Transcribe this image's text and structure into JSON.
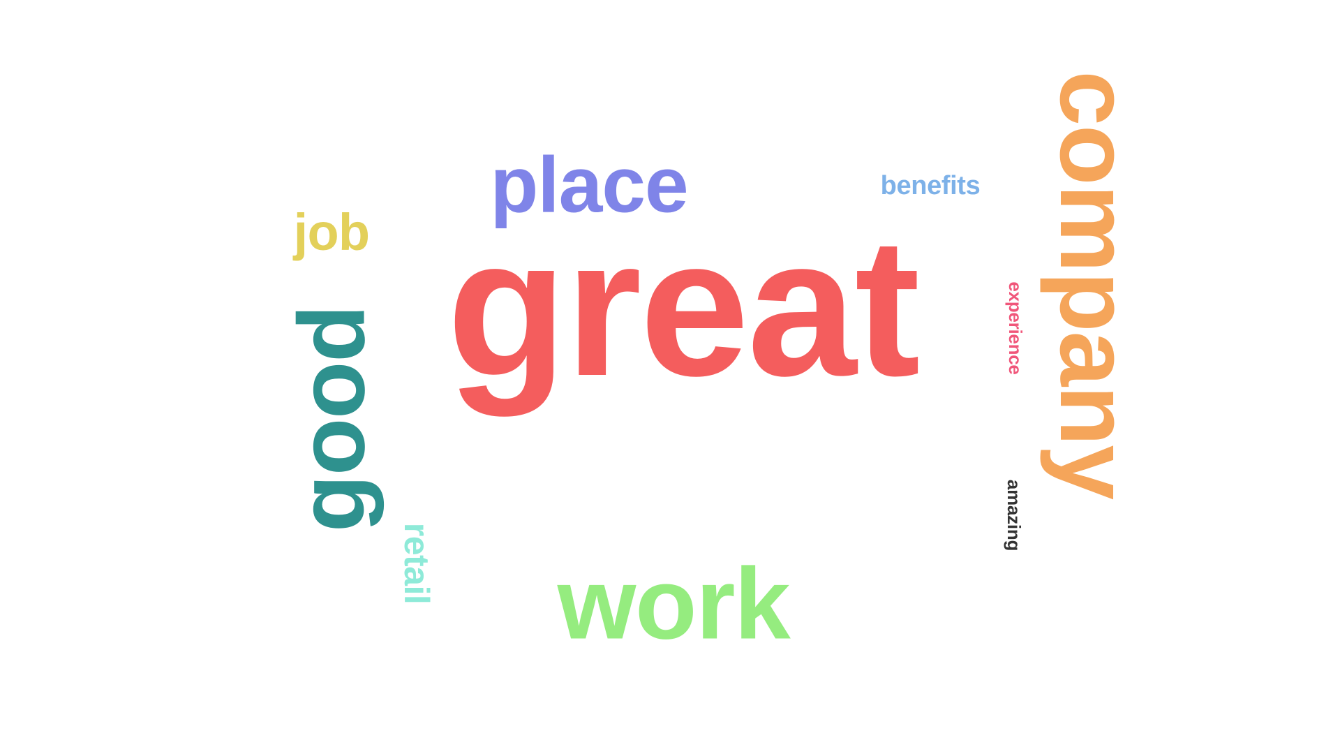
{
  "word_cloud": {
    "words": [
      {
        "text": "great",
        "color": "#F45D5D",
        "rotation": 0
      },
      {
        "text": "company",
        "color": "#F5A55A",
        "rotation": 90
      },
      {
        "text": "good",
        "color": "#2E918E",
        "rotation": 270
      },
      {
        "text": "work",
        "color": "#95EC7F",
        "rotation": 0
      },
      {
        "text": "place",
        "color": "#7F84E8",
        "rotation": 0
      },
      {
        "text": "job",
        "color": "#E3D05A",
        "rotation": 0
      },
      {
        "text": "benefits",
        "color": "#7DB1E8",
        "rotation": 0
      },
      {
        "text": "retail",
        "color": "#8EEAD8",
        "rotation": 90
      },
      {
        "text": "experience",
        "color": "#F0567A",
        "rotation": 90
      },
      {
        "text": "amazing",
        "color": "#333333",
        "rotation": 90
      }
    ]
  }
}
